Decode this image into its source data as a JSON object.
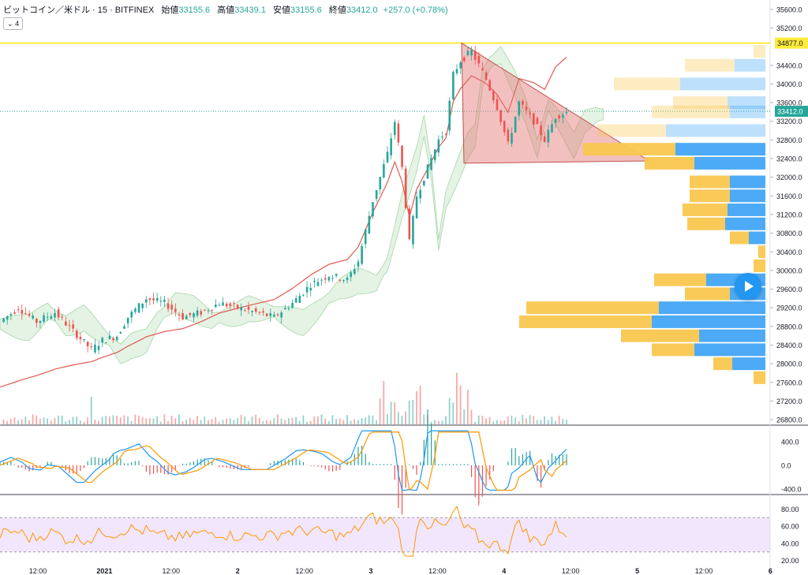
{
  "header": {
    "symbol": "ビットコイン／米ドル · 15 · BITFINEX",
    "open_label": "始値",
    "open": "33155.6",
    "high_label": "高値",
    "high": "33439.1",
    "low_label": "安値",
    "low": "33155.6",
    "close_label": "終値",
    "close": "33412.0",
    "change": "+257.0 (+0.78%)"
  },
  "indicator_badge": "4",
  "colors": {
    "up": "#26a69a",
    "down": "#ef5350",
    "cloud_up": "#a5d6a7",
    "cloud_down": "#ef9a9a",
    "ma": "#e0584f",
    "triangle": "#e57373",
    "vp_buy": "#42a5f5",
    "vp_sell": "#f9c74f",
    "macd": "#2196f3",
    "signal": "#ff9800",
    "rsi": "#ff9800",
    "rsi_band": "#e9d6fb",
    "level": "#ffeb3b"
  },
  "chart_data": {
    "type": "candlestick",
    "price_axis": {
      "ticks": [
        "35600.0",
        "35200.0",
        "34877.0",
        "34400.0",
        "34000.0",
        "33600.0",
        "33412.0",
        "33200.0",
        "32800.0",
        "32400.0",
        "32000.0",
        "31600.0",
        "31200.0",
        "30800.0",
        "30400.0",
        "30000.0",
        "29600.0",
        "29200.0",
        "28800.0",
        "28400.0",
        "28000.0",
        "27600.0",
        "27200.0",
        "26800.0"
      ],
      "range": [
        26700,
        35800
      ]
    },
    "time_axis": {
      "ticks": [
        "12:00",
        "2021",
        "12:00",
        "2",
        "12:00",
        "3",
        "12:00",
        "4",
        "12:00",
        "5",
        "12:00",
        "6"
      ]
    },
    "horizontal_level": {
      "price": 34877.0,
      "label": "34877.0"
    },
    "current_price": {
      "price": 33412.0,
      "label": "33412.0"
    },
    "triangle": {
      "apex_top": 34877,
      "base_left": 32300,
      "apex_right": 32350
    },
    "price_path": [
      [
        0,
        28900
      ],
      [
        5,
        29200
      ],
      [
        10,
        28900
      ],
      [
        15,
        29100
      ],
      [
        20,
        28700
      ],
      [
        25,
        28300
      ],
      [
        28,
        28500
      ],
      [
        32,
        28600
      ],
      [
        35,
        29000
      ],
      [
        40,
        29400
      ],
      [
        45,
        29300
      ],
      [
        50,
        29000
      ],
      [
        55,
        29100
      ],
      [
        60,
        29300
      ],
      [
        65,
        29200
      ],
      [
        70,
        29100
      ],
      [
        75,
        29000
      ],
      [
        80,
        29300
      ],
      [
        85,
        29700
      ],
      [
        90,
        29900
      ],
      [
        95,
        29800
      ],
      [
        98,
        30200
      ],
      [
        102,
        31500
      ],
      [
        106,
        32500
      ],
      [
        108,
        33200
      ],
      [
        110,
        32200
      ],
      [
        112,
        30600
      ],
      [
        114,
        31600
      ],
      [
        117,
        32200
      ],
      [
        120,
        32800
      ],
      [
        122,
        33000
      ],
      [
        124,
        34200
      ],
      [
        126,
        34500
      ],
      [
        129,
        34700
      ],
      [
        133,
        34100
      ],
      [
        136,
        33500
      ],
      [
        139,
        32700
      ],
      [
        142,
        33600
      ],
      [
        146,
        33200
      ],
      [
        149,
        32800
      ],
      [
        152,
        33300
      ],
      [
        155,
        33400
      ]
    ],
    "volume_profile": {
      "rows": [
        {
          "price": 34700,
          "buy": 0.05,
          "sell": 0.0
        },
        {
          "price": 34400,
          "buy": 0.21,
          "sell": 0.13
        },
        {
          "price": 34000,
          "buy": 0.28,
          "sell": 0.36
        },
        {
          "price": 33600,
          "buy": 0.23,
          "sell": 0.16
        },
        {
          "price": 33400,
          "buy": 0.33,
          "sell": 0.15
        },
        {
          "price": 33000,
          "buy": 0.29,
          "sell": 0.42
        },
        {
          "price": 32600,
          "buy": 0.39,
          "sell": 0.38
        },
        {
          "price": 32300,
          "buy": 0.21,
          "sell": 0.3
        },
        {
          "price": 31900,
          "buy": 0.17,
          "sell": 0.15
        },
        {
          "price": 31600,
          "buy": 0.17,
          "sell": 0.15
        },
        {
          "price": 31300,
          "buy": 0.19,
          "sell": 0.16
        },
        {
          "price": 31000,
          "buy": 0.16,
          "sell": 0.17
        },
        {
          "price": 30700,
          "buy": 0.08,
          "sell": 0.07
        },
        {
          "price": 30400,
          "buy": 0.03,
          "sell": 0.0
        },
        {
          "price": 30100,
          "buy": 0.05,
          "sell": 0.0
        },
        {
          "price": 29800,
          "buy": 0.22,
          "sell": 0.25
        },
        {
          "price": 29500,
          "buy": 0.19,
          "sell": 0.15
        },
        {
          "price": 29200,
          "buy": 0.56,
          "sell": 0.45
        },
        {
          "price": 28900,
          "buy": 0.56,
          "sell": 0.48
        },
        {
          "price": 28600,
          "buy": 0.33,
          "sell": 0.28
        },
        {
          "price": 28300,
          "buy": 0.18,
          "sell": 0.3
        },
        {
          "price": 28000,
          "buy": 0.08,
          "sell": 0.14
        },
        {
          "price": 27700,
          "buy": 0.05,
          "sell": 0.0
        }
      ]
    },
    "macd": {
      "ticks": [
        "400.0",
        "0.0",
        "-400.0"
      ],
      "range": [
        -480,
        650
      ]
    },
    "rsi": {
      "ticks": [
        "80.00",
        "60.00",
        "40.00",
        "20.00"
      ],
      "range": [
        15,
        95
      ],
      "band": [
        30,
        70
      ]
    }
  }
}
